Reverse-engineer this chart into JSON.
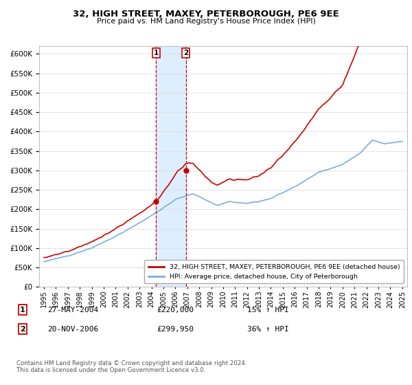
{
  "title": "32, HIGH STREET, MAXEY, PETERBOROUGH, PE6 9EE",
  "subtitle": "Price paid vs. HM Land Registry's House Price Index (HPI)",
  "legend_line1": "32, HIGH STREET, MAXEY, PETERBOROUGH, PE6 9EE (detached house)",
  "legend_line2": "HPI: Average price, detached house, City of Peterborough",
  "transaction1_label": "1",
  "transaction1_date": "27-MAY-2004",
  "transaction1_price": "£220,000",
  "transaction1_hpi": "15% ↑ HPI",
  "transaction1_year": 2004.4,
  "transaction1_value": 220000,
  "transaction2_label": "2",
  "transaction2_date": "20-NOV-2006",
  "transaction2_price": "£299,950",
  "transaction2_hpi": "36% ↑ HPI",
  "transaction2_year": 2006.9,
  "transaction2_value": 299950,
  "ylim": [
    0,
    620000
  ],
  "yticks": [
    0,
    50000,
    100000,
    150000,
    200000,
    250000,
    300000,
    350000,
    400000,
    450000,
    500000,
    550000,
    600000
  ],
  "red_color": "#cc0000",
  "blue_color": "#7aaedc",
  "shade_color": "#ddeeff",
  "footer": "Contains HM Land Registry data © Crown copyright and database right 2024.\nThis data is licensed under the Open Government Licence v3.0."
}
